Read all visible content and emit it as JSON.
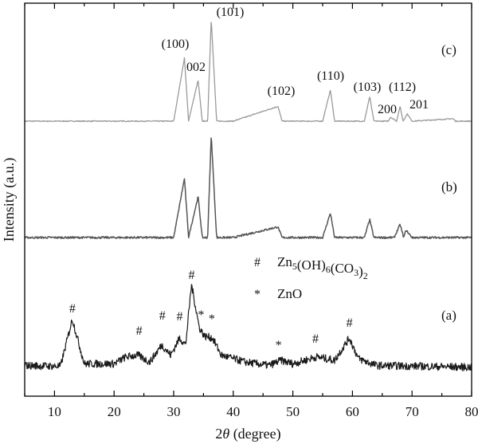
{
  "chart_data": {
    "type": "line",
    "title": "",
    "xlabel": "2θ (degree)",
    "ylabel": "Intensity (a.u.)",
    "xlim": [
      5,
      80
    ],
    "xticks": [
      10,
      20,
      30,
      40,
      50,
      60,
      70,
      80
    ],
    "grid": false,
    "colors": {
      "c": "#9a9a9a",
      "b": "#555555",
      "a": "#1a1a1a",
      "axis": "#000000"
    },
    "series": [
      {
        "name": "(c)",
        "noise": 0.6,
        "x": [
          5,
          30,
          31.8,
          32.5,
          34.1,
          34.8,
          35.7,
          36.3,
          37.2,
          40,
          47.5,
          48.2,
          55,
          56.3,
          57,
          62,
          62.9,
          63.6,
          66,
          66.4,
          67.4,
          68,
          68.5,
          69.2,
          70,
          76.9,
          77.3,
          80
        ],
        "y": [
          0,
          0,
          77,
          0,
          50,
          0,
          0,
          125,
          0,
          0,
          18,
          0,
          0,
          38,
          0,
          0,
          30,
          0,
          0,
          5,
          0,
          18,
          0,
          9,
          0,
          3,
          0,
          0
        ]
      },
      {
        "name": "(b)",
        "noise": 1.2,
        "x": [
          5,
          30,
          31.8,
          32.5,
          34.1,
          34.8,
          35.7,
          36.3,
          37.2,
          40,
          47.5,
          48.2,
          55,
          56.3,
          57,
          62,
          62.9,
          63.6,
          67,
          68,
          68.6,
          69,
          70,
          80
        ],
        "y": [
          0,
          0,
          72,
          0,
          50,
          0,
          0,
          125,
          0,
          0,
          13,
          0,
          0,
          30,
          0,
          0,
          22,
          0,
          0,
          16,
          0,
          9,
          0,
          0
        ]
      },
      {
        "name": "(a)",
        "noise": 4.5,
        "x": [
          5,
          11,
          13,
          15,
          20,
          22,
          24,
          26,
          28,
          29.5,
          31,
          32,
          33,
          34.3,
          35.2,
          36.5,
          38,
          42,
          46,
          48,
          50,
          53,
          54,
          57,
          59.5,
          61,
          64,
          80
        ],
        "y": [
          6,
          5,
          60,
          8,
          8,
          16,
          18,
          10,
          30,
          18,
          38,
          30,
          100,
          50,
          40,
          38,
          18,
          10,
          6,
          12,
          8,
          14,
          16,
          12,
          38,
          14,
          6,
          4
        ]
      }
    ],
    "trace_labels": [
      "(c)",
      "(b)",
      "(a)"
    ],
    "peak_labels": [
      {
        "text": "(100)",
        "x": 31.8
      },
      {
        "text": "002",
        "x": 34.4
      },
      {
        "text": "(101)",
        "x": 36.3
      },
      {
        "text": "(102)",
        "x": 47.5
      },
      {
        "text": "(110)",
        "x": 56.3
      },
      {
        "text": "(103)",
        "x": 62.9
      },
      {
        "text": "(112)",
        "x": 68.0
      },
      {
        "text": "200",
        "x": 66.4
      },
      {
        "text": "201",
        "x": 69.2
      }
    ],
    "markers_a": [
      {
        "symbol": "#",
        "x": 13.0
      },
      {
        "symbol": "#",
        "x": 24.2
      },
      {
        "symbol": "#",
        "x": 28.1
      },
      {
        "symbol": "#",
        "x": 31.0
      },
      {
        "symbol": "#",
        "x": 33.0
      },
      {
        "symbol": "*",
        "x": 34.6
      },
      {
        "symbol": "*",
        "x": 36.4
      },
      {
        "symbol": "*",
        "x": 47.6
      },
      {
        "symbol": "#",
        "x": 53.8
      },
      {
        "symbol": "#",
        "x": 59.5
      }
    ],
    "legend": [
      {
        "symbol": "#",
        "label_parts": [
          [
            "Zn",
            ""
          ],
          [
            "5",
            "sub"
          ],
          [
            "(OH)",
            ""
          ],
          [
            "6",
            "sub"
          ],
          [
            "(CO",
            ""
          ],
          [
            "3",
            "sub"
          ],
          [
            ")",
            ""
          ],
          [
            "2",
            "sub"
          ]
        ]
      },
      {
        "symbol": "*",
        "label_parts": [
          [
            "ZnO",
            ""
          ]
        ]
      }
    ]
  }
}
